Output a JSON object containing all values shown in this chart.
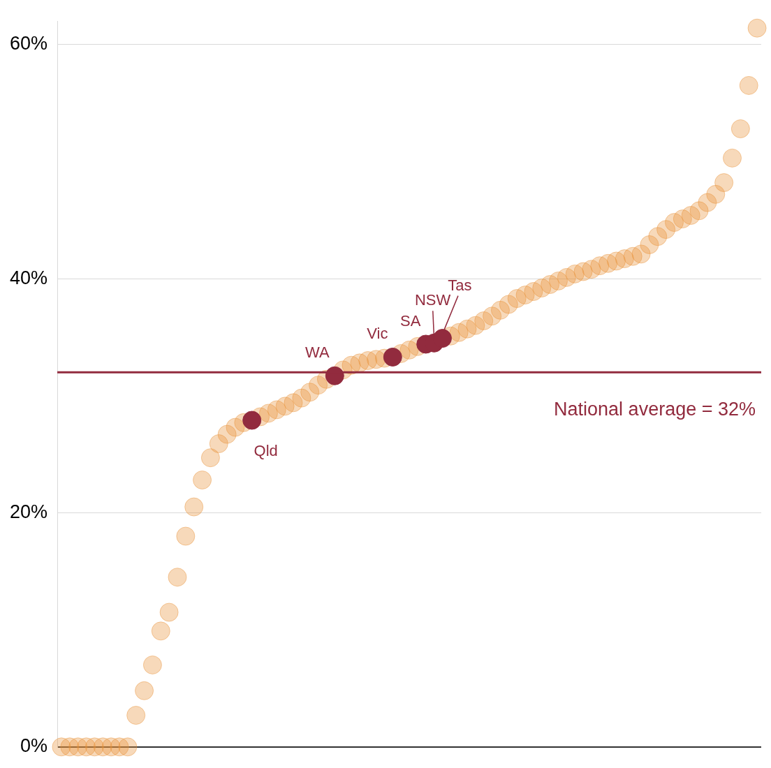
{
  "chart_data": {
    "type": "scatter",
    "ylim": [
      0,
      62
    ],
    "categories": [
      null,
      null,
      null,
      null,
      null,
      null,
      null,
      null,
      null,
      null,
      null,
      null,
      null,
      null,
      null,
      null,
      null,
      null,
      null,
      null,
      null,
      null,
      null,
      null,
      null,
      null,
      null,
      null,
      null,
      null,
      null,
      null,
      null,
      null,
      null,
      null,
      null,
      null,
      null,
      null,
      null,
      null,
      null,
      null,
      null,
      null,
      null,
      null,
      null,
      null,
      null,
      null,
      null,
      null,
      null,
      null,
      null,
      null,
      null,
      null,
      null,
      null,
      null,
      null,
      null,
      null,
      null,
      null,
      null,
      null,
      null,
      null,
      null,
      null,
      null,
      null,
      null,
      null,
      null,
      null,
      null,
      null,
      null,
      null,
      null
    ],
    "yticks": [
      {
        "value": 0,
        "label": "0%"
      },
      {
        "value": 20,
        "label": "20%"
      },
      {
        "value": 40,
        "label": "40%"
      },
      {
        "value": 60,
        "label": "60%"
      }
    ],
    "tick_labels": "y",
    "grid": "y",
    "legend": false,
    "marker": "circle",
    "series": [
      {
        "color": "#e8923a",
        "values": [
          0,
          0,
          0,
          0,
          0,
          0,
          0,
          0,
          0,
          2.7,
          4.8,
          7.0,
          9.9,
          11.5,
          14.5,
          18.0,
          20.5,
          22.8,
          24.7,
          25.9,
          26.7,
          27.3,
          27.7,
          null,
          28.2,
          28.5,
          28.8,
          29.1,
          29.4,
          29.8,
          30.3,
          30.9,
          31.4,
          null,
          32.2,
          32.6,
          32.8,
          33.0,
          33.1,
          33.2,
          null,
          33.6,
          33.9,
          34.2,
          null,
          null,
          null,
          35.1,
          35.4,
          35.7,
          36.0,
          36.4,
          36.8,
          37.3,
          37.8,
          38.3,
          38.6,
          38.9,
          39.2,
          39.5,
          39.8,
          40.1,
          40.4,
          40.6,
          40.8,
          41.1,
          41.3,
          41.5,
          41.7,
          41.9,
          42.1,
          42.9,
          43.6,
          44.2,
          44.8,
          45.1,
          45.4,
          45.8,
          46.5,
          47.2,
          48.2,
          50.3,
          52.8,
          56.5,
          61.4
        ]
      },
      {
        "color": "#922b3e",
        "values": [
          null,
          null,
          null,
          null,
          null,
          null,
          null,
          null,
          null,
          null,
          null,
          null,
          null,
          null,
          null,
          null,
          null,
          null,
          null,
          null,
          null,
          null,
          null,
          27.9,
          null,
          null,
          null,
          null,
          null,
          null,
          null,
          null,
          null,
          31.7,
          null,
          null,
          null,
          null,
          null,
          null,
          33.3,
          null,
          null,
          null,
          34.4,
          34.5,
          34.9,
          null,
          null,
          null,
          null,
          null,
          null,
          null,
          null,
          null,
          null,
          null,
          null,
          null,
          null,
          null,
          null,
          null,
          null,
          null,
          null,
          null,
          null,
          null,
          null,
          null,
          null,
          null,
          null,
          null,
          null,
          null,
          null,
          null,
          null,
          null,
          null,
          null,
          null
        ]
      }
    ],
    "ref_lines": [
      {
        "axis": "y",
        "value": 32,
        "label": "National average = 32%",
        "color": "#922b3e"
      }
    ],
    "annotations": [
      {
        "text": "Qld",
        "y": 27.9
      },
      {
        "text": "WA",
        "y": 31.7
      },
      {
        "text": "Vic",
        "y": 33.3
      },
      {
        "text": "SA",
        "y": 34.4
      },
      {
        "text": "NSW",
        "y": 34.5
      },
      {
        "text": "Tas",
        "y": 34.9
      }
    ]
  }
}
